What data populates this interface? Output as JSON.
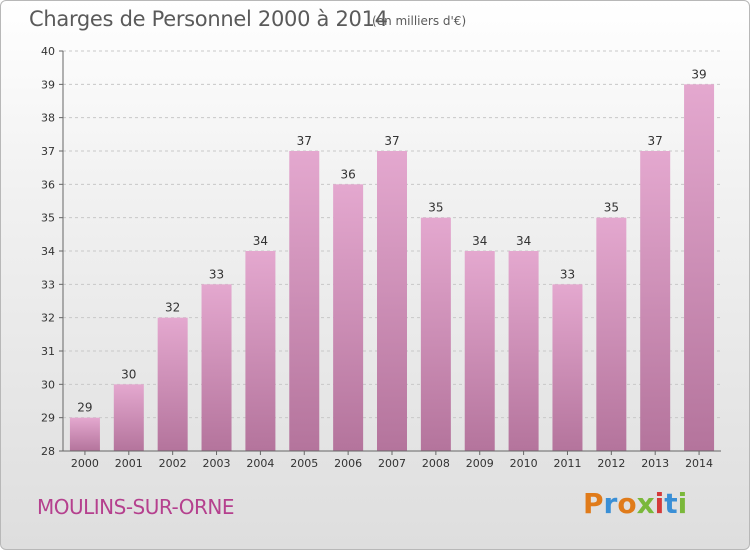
{
  "header": {
    "title": "Charges de Personnel 2000 à 2014",
    "subtitle": "(en milliers d'€)"
  },
  "footer": {
    "city": "MOULINS-SUR-ORNE",
    "logo": "Proxiti"
  },
  "colors": {
    "bar_top": "#e4a8cf",
    "bar_bottom": "#b4749c",
    "city": "#b5408e",
    "logo_letters": [
      "#e07b1a",
      "#3a8fd6",
      "#e07b1a",
      "#7ab83a",
      "#d43a3a",
      "#3a8fd6",
      "#7ab83a"
    ]
  },
  "chart_data": {
    "type": "bar",
    "categories": [
      "2000",
      "2001",
      "2002",
      "2003",
      "2004",
      "2005",
      "2006",
      "2007",
      "2008",
      "2009",
      "2010",
      "2011",
      "2012",
      "2013",
      "2014"
    ],
    "values": [
      29,
      30,
      32,
      33,
      34,
      37,
      36,
      37,
      35,
      34,
      34,
      33,
      35,
      37,
      39
    ],
    "title": "Charges de Personnel 2000 à 2014",
    "xlabel": "",
    "ylabel": "",
    "ylim": [
      28,
      40
    ],
    "yticks": [
      28,
      29,
      30,
      31,
      32,
      33,
      34,
      35,
      36,
      37,
      38,
      39,
      40
    ],
    "grid": true,
    "legend": "none"
  }
}
